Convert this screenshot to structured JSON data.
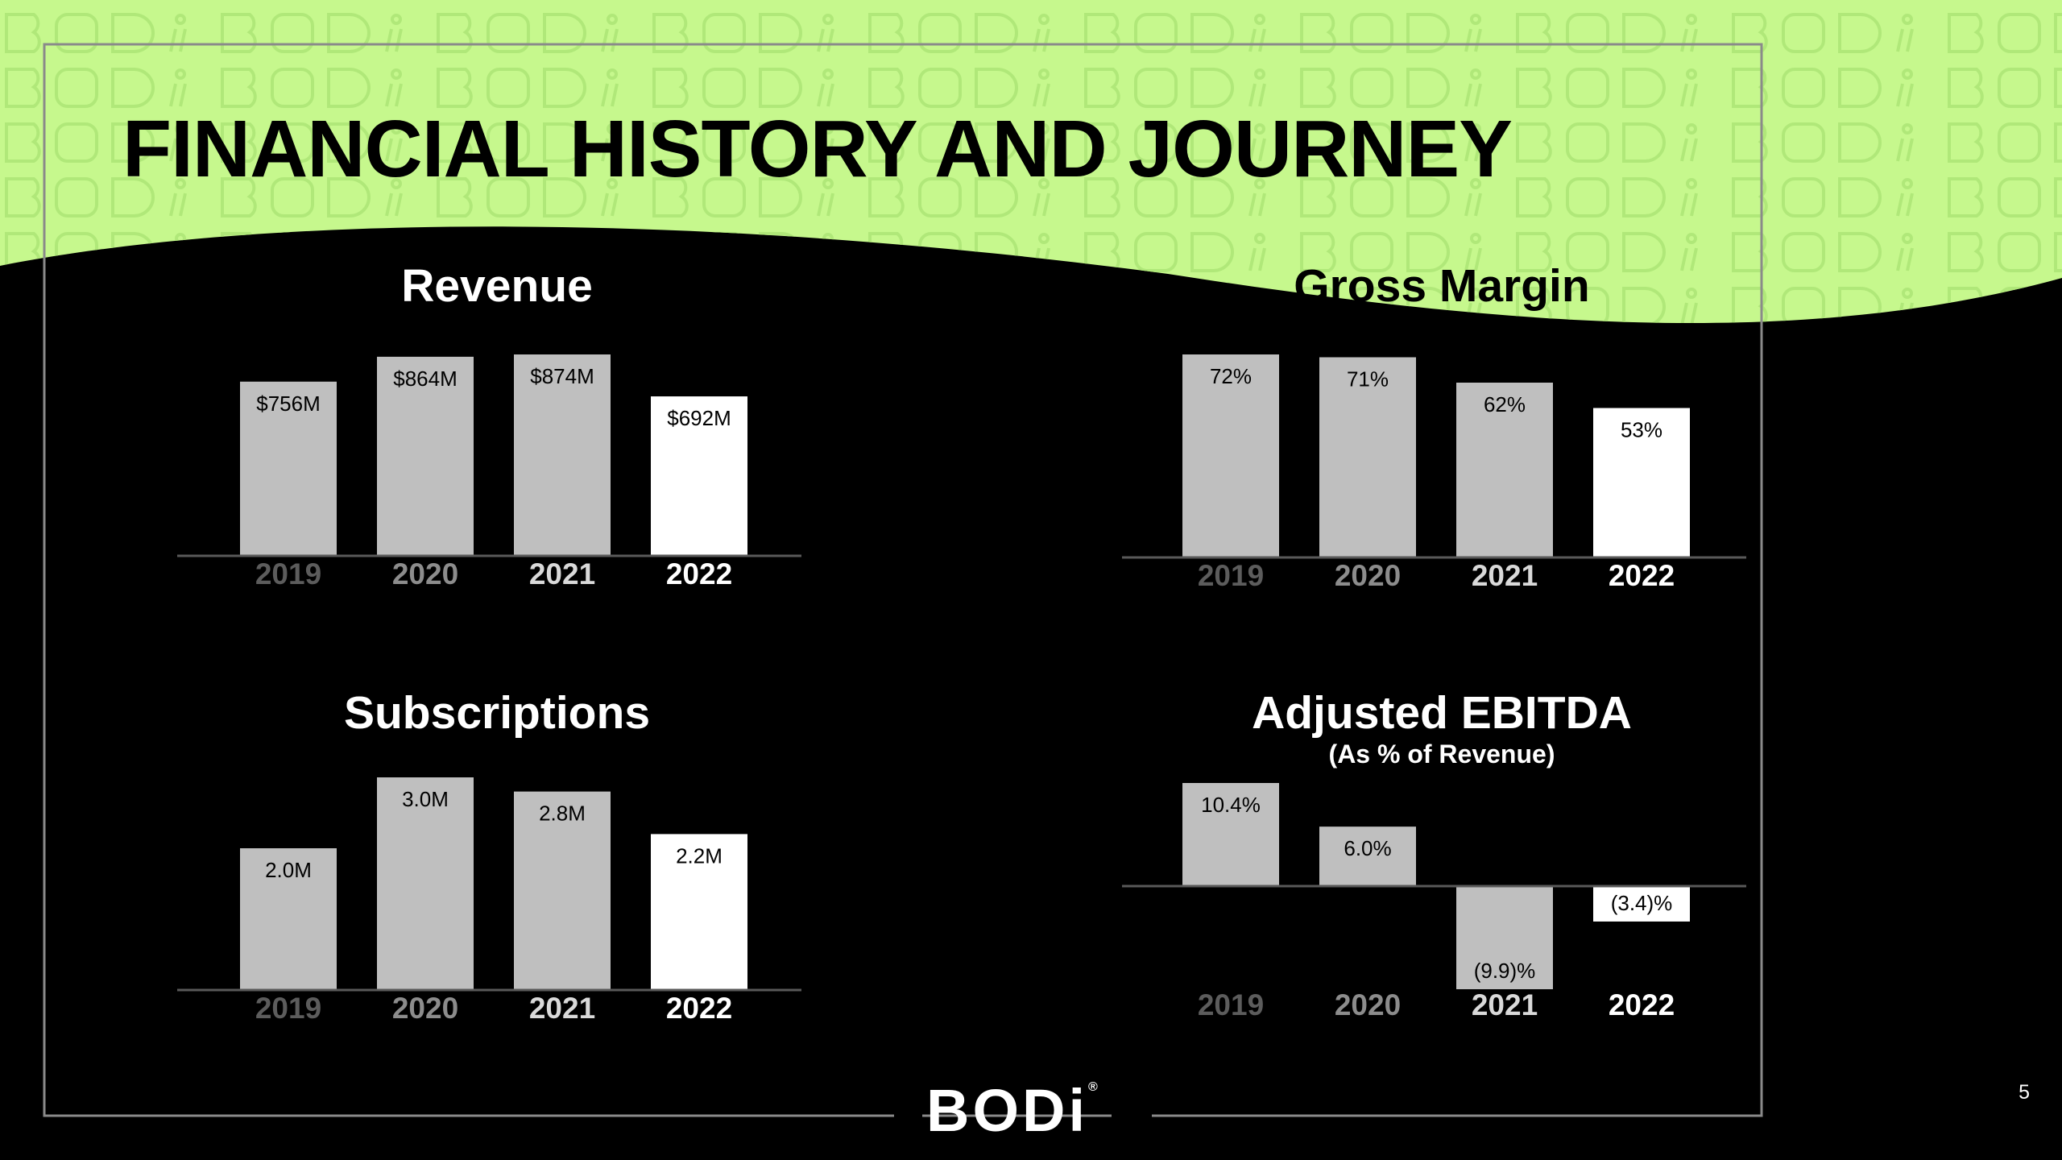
{
  "title": "FINANCIAL HISTORY AND JOURNEY",
  "page_number": "5",
  "brand": "BODi",
  "colors": {
    "accent": "#c6f88d",
    "bar_past": "#bfbfbf",
    "bar_current": "#ffffff",
    "background": "#000000"
  },
  "chart_data": [
    {
      "type": "bar",
      "title": "Revenue",
      "categories": [
        "2019",
        "2020",
        "2021",
        "2022"
      ],
      "values": [
        756,
        864,
        874,
        692
      ],
      "labels": [
        "$756M",
        "$864M",
        "$874M",
        "$692M"
      ],
      "ylim": [
        0,
        874
      ]
    },
    {
      "type": "bar",
      "title": "Gross Margin",
      "categories": [
        "2019",
        "2020",
        "2021",
        "2022"
      ],
      "values": [
        72,
        71,
        62,
        53
      ],
      "labels": [
        "72%",
        "71%",
        "62%",
        "53%"
      ],
      "ylim": [
        0,
        72
      ]
    },
    {
      "type": "bar",
      "title": "Subscriptions",
      "categories": [
        "2019",
        "2020",
        "2021",
        "2022"
      ],
      "values": [
        2.0,
        3.0,
        2.8,
        2.2
      ],
      "labels": [
        "2.0M",
        "3.0M",
        "2.8M",
        "2.2M"
      ],
      "ylim": [
        0,
        3.0
      ]
    },
    {
      "type": "bar",
      "title": "Adjusted EBITDA",
      "subtitle": "(As % of Revenue)",
      "categories": [
        "2019",
        "2020",
        "2021",
        "2022"
      ],
      "values": [
        10.4,
        6.0,
        -9.9,
        -3.4
      ],
      "labels": [
        "10.4%",
        "6.0%",
        "(9.9)%",
        "(3.4)%"
      ],
      "ylim": [
        -9.9,
        10.4
      ]
    }
  ]
}
